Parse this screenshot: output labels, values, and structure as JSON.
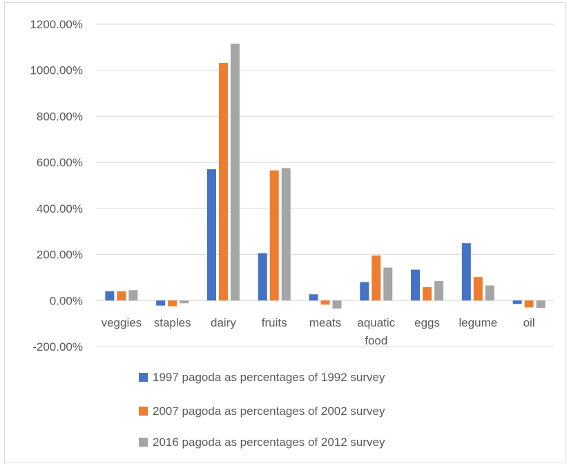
{
  "chart_data": {
    "type": "bar",
    "title": "",
    "xlabel": "",
    "ylabel": "",
    "ylim": [
      -200,
      1200
    ],
    "y_ticks": [
      -200,
      0,
      200,
      400,
      600,
      800,
      1000,
      1200
    ],
    "y_tick_labels": [
      "-200.00%",
      "0.00%",
      "200.00%",
      "400.00%",
      "600.00%",
      "800.00%",
      "1000.00%",
      "1200.00%"
    ],
    "grid": true,
    "legend_position": "bottom",
    "categories": [
      [
        "veggies"
      ],
      [
        "staples"
      ],
      [
        "dairy"
      ],
      [
        "fruits"
      ],
      [
        "meats"
      ],
      [
        "aquatic",
        "food"
      ],
      [
        "eggs"
      ],
      [
        "legume"
      ],
      [
        "oil"
      ]
    ],
    "series": [
      {
        "name": "1997 pagoda as percentages of 1992 survey",
        "color": "#4472c4",
        "values": [
          40,
          -22,
          570,
          205,
          27,
          80,
          134,
          249,
          -15
        ]
      },
      {
        "name": "2007 pagoda as percentages of 2002 survey",
        "color": "#ed7d31",
        "values": [
          40,
          -25,
          1032,
          565,
          -18,
          195,
          58,
          102,
          -30
        ]
      },
      {
        "name": "2016 pagoda as percentages of 2012 survey",
        "color": "#a5a5a5",
        "values": [
          45,
          -12,
          1115,
          575,
          -35,
          143,
          85,
          65,
          -32
        ]
      }
    ]
  }
}
